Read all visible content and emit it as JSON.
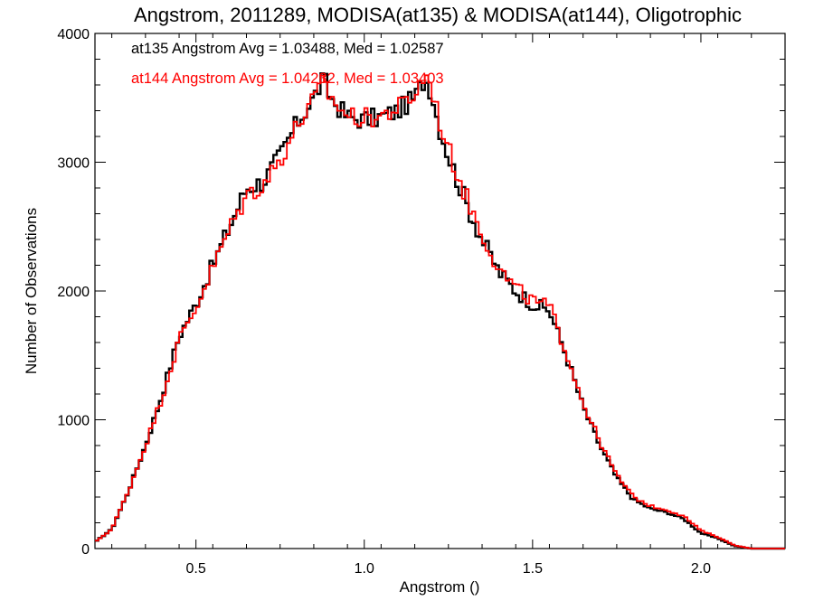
{
  "chart_data": {
    "type": "line",
    "step": true,
    "title": "Angstrom, 2011289, MODISA(at135) & MODISA(at144), Oligotrophic",
    "xlabel": "Angstrom ()",
    "ylabel": "Number of Observations",
    "xlim": [
      0.2,
      2.25
    ],
    "ylim": [
      0,
      4000
    ],
    "xticks": [
      0.5,
      1.0,
      1.5,
      2.0
    ],
    "xtick_labels": [
      "0.5",
      "1.0",
      "1.5",
      "2.0"
    ],
    "yticks": [
      0,
      1000,
      2000,
      3000,
      4000
    ],
    "ytick_labels": [
      "0",
      "1000",
      "2000",
      "3000",
      "4000"
    ],
    "grid": false,
    "legend_position": "top-left",
    "annotations": [
      {
        "text": "at135 Angstrom Avg = 1.03488, Med = 1.02587",
        "color": "#000000"
      },
      {
        "text": "at144 Angstrom Avg = 1.04232, Med = 1.03403",
        "color": "#ff0000"
      }
    ],
    "x": [
      0.2,
      0.25,
      0.3,
      0.35,
      0.4,
      0.45,
      0.5,
      0.55,
      0.6,
      0.65,
      0.7,
      0.75,
      0.8,
      0.85,
      0.88,
      0.9,
      0.95,
      1.0,
      1.05,
      1.1,
      1.15,
      1.18,
      1.2,
      1.22,
      1.25,
      1.3,
      1.35,
      1.4,
      1.45,
      1.5,
      1.55,
      1.6,
      1.65,
      1.7,
      1.75,
      1.8,
      1.85,
      1.9,
      1.95,
      2.0,
      2.05,
      2.1,
      2.15,
      2.2,
      2.25
    ],
    "series": [
      {
        "name": "at135",
        "color": "#000000",
        "values": [
          50,
          150,
          450,
          800,
          1200,
          1650,
          1900,
          2200,
          2500,
          2800,
          2850,
          3050,
          3300,
          3500,
          3650,
          3500,
          3350,
          3330,
          3350,
          3400,
          3500,
          3650,
          3550,
          3300,
          3050,
          2700,
          2400,
          2150,
          2000,
          1900,
          1850,
          1500,
          1100,
          800,
          550,
          380,
          310,
          280,
          230,
          120,
          80,
          20,
          0,
          0,
          0
        ]
      },
      {
        "name": "at144",
        "color": "#ff0000",
        "values": [
          50,
          150,
          450,
          800,
          1180,
          1620,
          1870,
          2180,
          2480,
          2740,
          2830,
          3020,
          3280,
          3480,
          3630,
          3500,
          3360,
          3340,
          3360,
          3420,
          3520,
          3680,
          3600,
          3350,
          3100,
          2750,
          2450,
          2170,
          2020,
          1920,
          1880,
          1530,
          1130,
          830,
          570,
          400,
          330,
          300,
          250,
          140,
          90,
          25,
          0,
          0,
          0
        ]
      }
    ]
  }
}
